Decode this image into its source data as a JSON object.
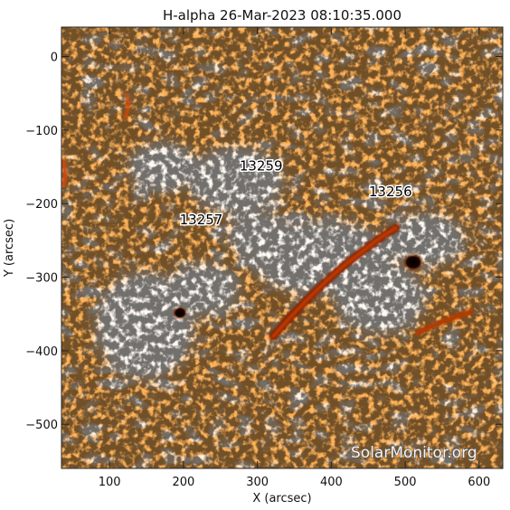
{
  "title": "H-alpha 26-Mar-2023 08:10:35.000",
  "xlabel": "X (arcsec)",
  "ylabel": "Y (arcsec)",
  "x_ticks": [
    "100",
    "200",
    "300",
    "400",
    "500",
    "600"
  ],
  "y_ticks": [
    "0",
    "−100",
    "−200",
    "−300",
    "−400",
    "−500"
  ],
  "x_range": [
    35,
    632
  ],
  "y_range": [
    -560,
    40
  ],
  "active_regions": [
    {
      "label": "13259",
      "x": 305,
      "y": -155
    },
    {
      "label": "13256",
      "x": 480,
      "y": -190
    },
    {
      "label": "13257",
      "x": 224,
      "y": -228
    }
  ],
  "watermark": "SolarMonitor.org",
  "colors": {
    "quiet_sun": "#e8661a",
    "plage": "#fff7ee",
    "filament": "#7a1e00",
    "sunspot": "#000000"
  }
}
